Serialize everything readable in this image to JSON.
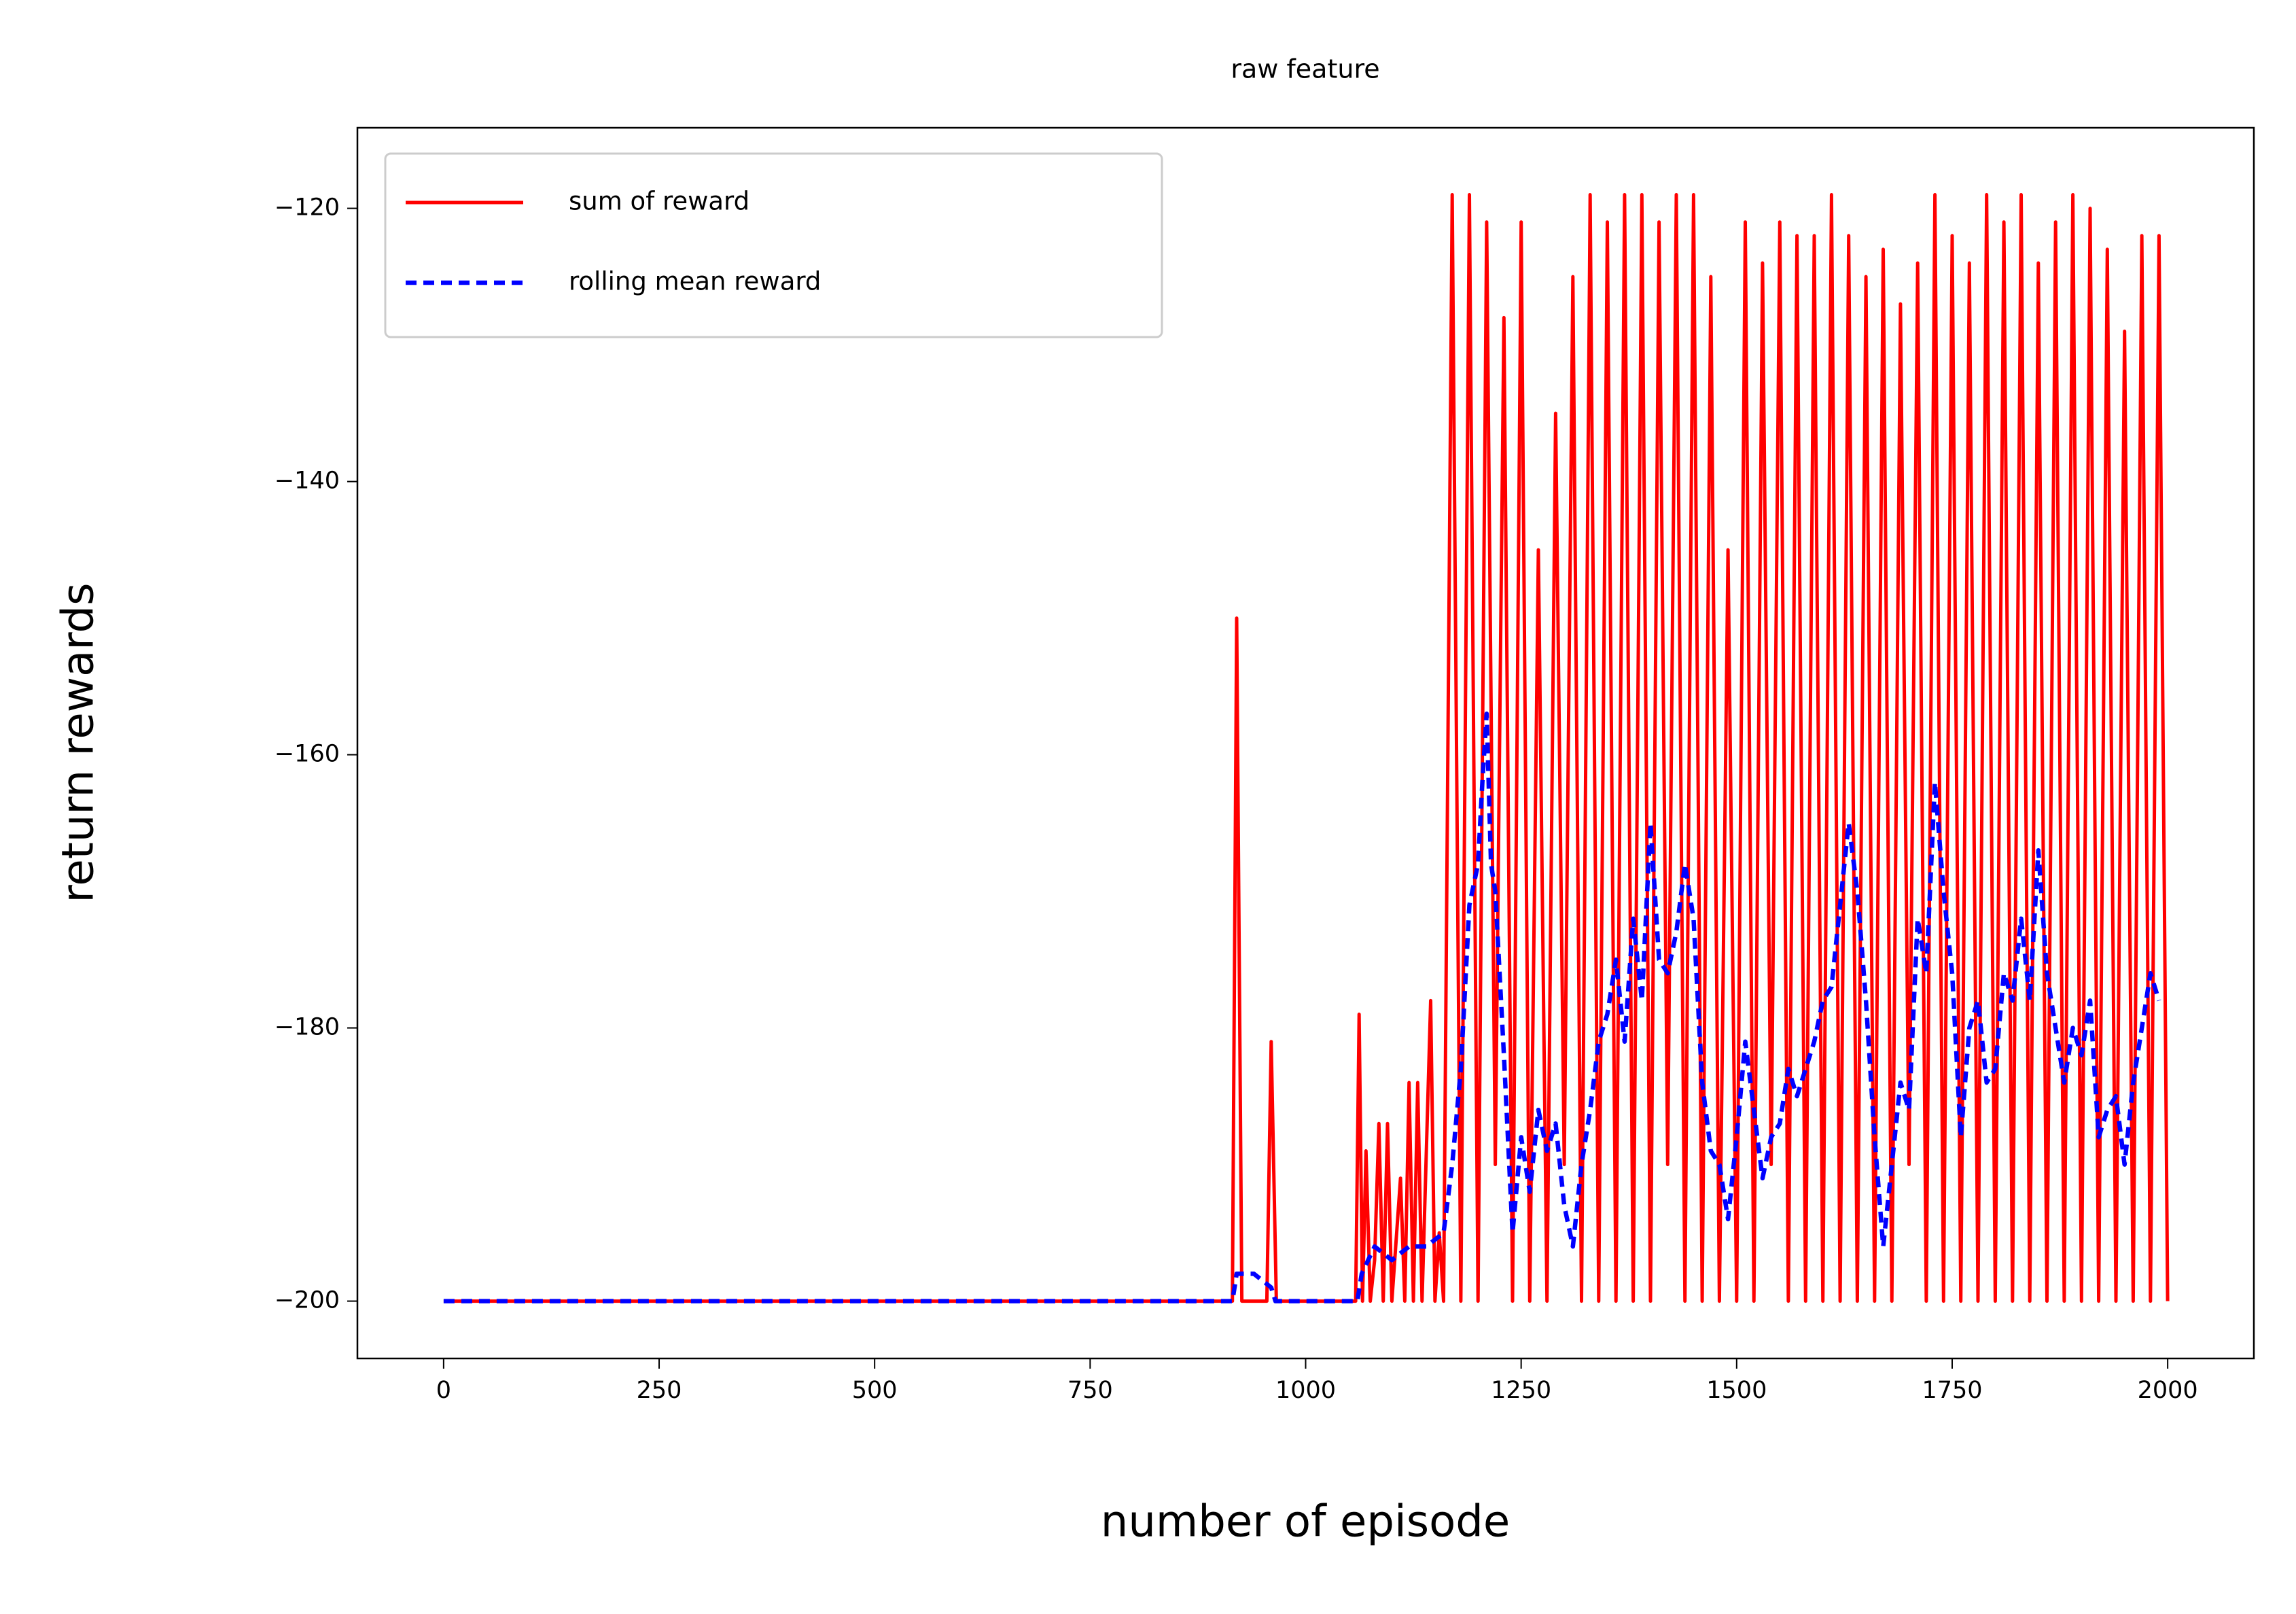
{
  "chart_data": {
    "type": "line",
    "title": "raw feature",
    "x_label": "number of episode",
    "y_label": "return rewards",
    "xlim": [
      -100,
      2100
    ],
    "ylim": [
      -204.2,
      -114.1
    ],
    "xticks": [
      0,
      250,
      500,
      750,
      1000,
      1250,
      1500,
      1750,
      2000
    ],
    "yticks": [
      {
        "value": -200,
        "label": "−200"
      },
      {
        "value": -180,
        "label": "−180"
      },
      {
        "value": -160,
        "label": "−160"
      },
      {
        "value": -140,
        "label": "−140"
      },
      {
        "value": -120,
        "label": "−120"
      }
    ],
    "legend": "upper left",
    "series": [
      {
        "name": "sum of reward",
        "color": "#ff0000",
        "style": "solid",
        "x": [
          0,
          915,
          920,
          926,
          955,
          960,
          966,
          1058,
          1062,
          1066,
          1070,
          1075,
          1080,
          1085,
          1090,
          1095,
          1100,
          1110,
          1115,
          1120,
          1125,
          1130,
          1135,
          1145,
          1150,
          1155,
          1160,
          1170,
          1180,
          1190,
          1200,
          1210,
          1220,
          1230,
          1240,
          1250,
          1260,
          1270,
          1280,
          1290,
          1300,
          1310,
          1320,
          1330,
          1340,
          1350,
          1360,
          1370,
          1380,
          1390,
          1400,
          1410,
          1420,
          1430,
          1440,
          1450,
          1460,
          1470,
          1480,
          1490,
          1500,
          1510,
          1520,
          1530,
          1540,
          1550,
          1560,
          1570,
          1580,
          1590,
          1600,
          1610,
          1620,
          1630,
          1640,
          1650,
          1660,
          1670,
          1680,
          1690,
          1700,
          1710,
          1720,
          1730,
          1740,
          1750,
          1760,
          1770,
          1780,
          1790,
          1800,
          1810,
          1820,
          1830,
          1840,
          1850,
          1860,
          1870,
          1880,
          1890,
          1900,
          1910,
          1920,
          1930,
          1940,
          1950,
          1960,
          1970,
          1980,
          1990,
          2000
        ],
        "values": [
          -200,
          -200,
          -150,
          -200,
          -200,
          -181,
          -200,
          -200,
          -179,
          -200,
          -189,
          -200,
          -197,
          -187,
          -200,
          -187,
          -200,
          -191,
          -200,
          -184,
          -200,
          -184,
          -200,
          -178,
          -200,
          -195,
          -200,
          -119,
          -200,
          -119,
          -200,
          -121,
          -190,
          -128,
          -200,
          -121,
          -200,
          -145,
          -200,
          -135,
          -190,
          -125,
          -200,
          -119,
          -200,
          -121,
          -200,
          -119,
          -200,
          -119,
          -200,
          -121,
          -190,
          -119,
          -200,
          -119,
          -200,
          -125,
          -200,
          -145,
          -200,
          -121,
          -200,
          -124,
          -190,
          -121,
          -200,
          -122,
          -200,
          -122,
          -200,
          -119,
          -200,
          -122,
          -200,
          -125,
          -200,
          -123,
          -200,
          -127,
          -190,
          -124,
          -200,
          -119,
          -200,
          -122,
          -200,
          -124,
          -200,
          -119,
          -200,
          -121,
          -200,
          -119,
          -200,
          -124,
          -200,
          -121,
          -200,
          -119,
          -200,
          -120,
          -200,
          -123,
          -200,
          -129,
          -200,
          -122,
          -200,
          -122,
          -200
        ]
      },
      {
        "name": "rolling mean reward",
        "color": "#0000ff",
        "style": "dashed",
        "x": [
          0,
          915,
          920,
          940,
          960,
          965,
          1060,
          1065,
          1080,
          1100,
          1120,
          1140,
          1160,
          1170,
          1180,
          1190,
          1200,
          1205,
          1210,
          1215,
          1220,
          1230,
          1240,
          1250,
          1260,
          1270,
          1280,
          1290,
          1300,
          1310,
          1320,
          1330,
          1340,
          1350,
          1360,
          1370,
          1380,
          1390,
          1400,
          1410,
          1420,
          1430,
          1440,
          1450,
          1460,
          1470,
          1480,
          1490,
          1500,
          1510,
          1520,
          1530,
          1540,
          1550,
          1560,
          1570,
          1580,
          1590,
          1600,
          1610,
          1620,
          1630,
          1640,
          1650,
          1660,
          1670,
          1680,
          1690,
          1700,
          1710,
          1720,
          1730,
          1740,
          1750,
          1760,
          1770,
          1780,
          1790,
          1800,
          1810,
          1820,
          1830,
          1840,
          1850,
          1860,
          1870,
          1880,
          1890,
          1900,
          1910,
          1920,
          1930,
          1940,
          1950,
          1960,
          1970,
          1980,
          1990
        ],
        "values": [
          -200,
          -200,
          -198,
          -198,
          -199,
          -200,
          -200,
          -198,
          -196,
          -197,
          -196,
          -196,
          -195,
          -190,
          -183,
          -171,
          -168,
          -162,
          -157,
          -168,
          -170,
          -182,
          -195,
          -188,
          -192,
          -186,
          -189,
          -187,
          -193,
          -196,
          -190,
          -186,
          -181,
          -179,
          -175,
          -181,
          -172,
          -178,
          -165,
          -175,
          -176,
          -173,
          -168,
          -172,
          -184,
          -189,
          -190,
          -194,
          -188,
          -181,
          -186,
          -191,
          -188,
          -187,
          -183,
          -185,
          -183,
          -181,
          -178,
          -177,
          -171,
          -165,
          -170,
          -178,
          -188,
          -196,
          -190,
          -184,
          -186,
          -172,
          -176,
          -162,
          -170,
          -176,
          -188,
          -180,
          -178,
          -184,
          -183,
          -176,
          -178,
          -172,
          -178,
          -167,
          -176,
          -180,
          -184,
          -180,
          -182,
          -178,
          -188,
          -186,
          -185,
          -190,
          -184,
          -180,
          -176,
          -178
        ]
      }
    ]
  }
}
